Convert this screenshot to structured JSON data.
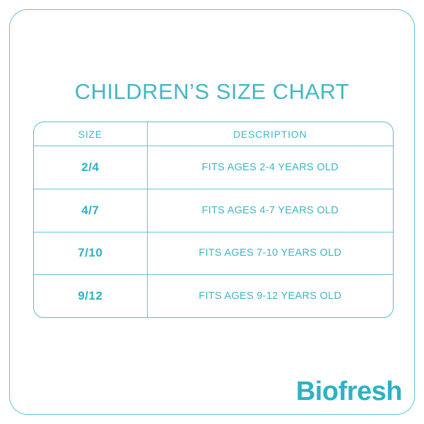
{
  "page": {
    "title": "CHILDREN’S SIZE CHART"
  },
  "chart_data": {
    "type": "table",
    "title": "CHILDREN’S SIZE CHART",
    "columns": [
      "SIZE",
      "DESCRIPTION"
    ],
    "rows": [
      [
        "2/4",
        "FITS AGES 2-4 YEARS OLD"
      ],
      [
        "4/7",
        "FITS AGES 4-7 YEARS OLD"
      ],
      [
        "7/10",
        "FITS AGES 7-10 YEARS OLD"
      ],
      [
        "9/12",
        "FITS AGES 9-12 YEARS OLD"
      ]
    ],
    "layout_hints": {
      "header_row": true,
      "rounded_table_border": true,
      "text_alignment": "center"
    }
  },
  "brand": {
    "name": "Biofresh"
  },
  "colors": {
    "title_teal": "#44b6c6",
    "table_border_teal": "#54bfcd",
    "cell_text_teal": "#3fb5c5",
    "size_text_teal": "#2fb2c4",
    "logo_teal": "#2bb2c3",
    "background": "#ffffff"
  }
}
